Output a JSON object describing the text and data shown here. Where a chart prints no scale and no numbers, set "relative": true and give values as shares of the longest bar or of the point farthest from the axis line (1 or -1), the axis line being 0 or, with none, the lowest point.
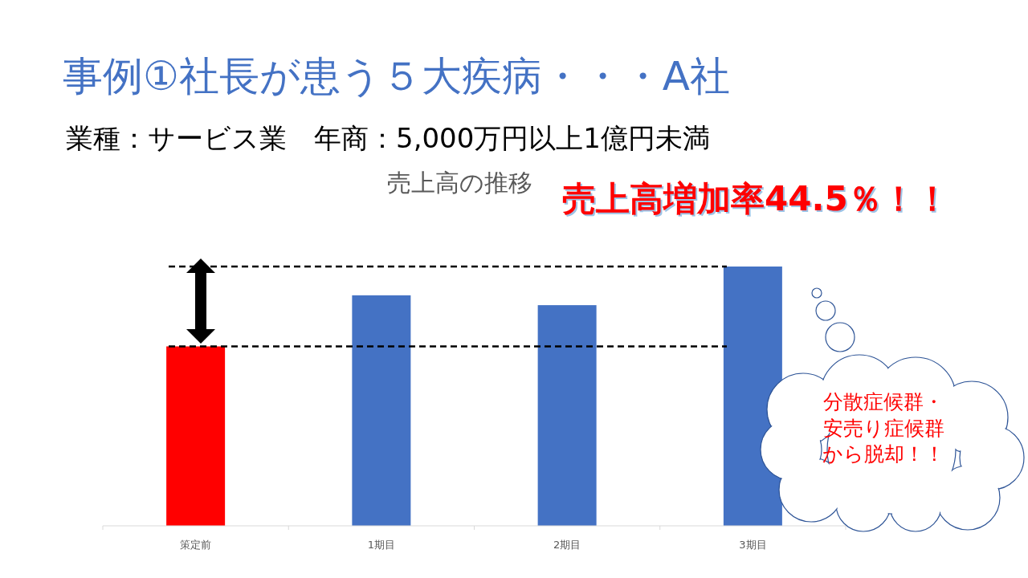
{
  "chart_data": {
    "type": "bar",
    "title": "事例①社長が患う５大疾病・・・A社",
    "subtitle": "業種：サービス業　年商：5,000万円以上1億円未満",
    "annotations": [
      "売上高の推移",
      "売上高増加率44.5％！！",
      "分散症候群・安売り症候群から脱却！！"
    ],
    "categories": [
      "策定前",
      "1期目",
      "2期目",
      "3期目"
    ],
    "values": [
      0.692,
      0.889,
      0.851,
      1
    ],
    "colors": [
      "#ff0000",
      "#4472c4",
      "#4472c4",
      "#4472c4"
    ],
    "relative": true,
    "ref_lines": [
      {
        "axis": "y",
        "value": 1,
        "color": "#000000",
        "line_style": "dashed"
      },
      {
        "axis": "y",
        "value": 0.692,
        "color": "#000000",
        "line_style": "dashed"
      }
    ]
  }
}
